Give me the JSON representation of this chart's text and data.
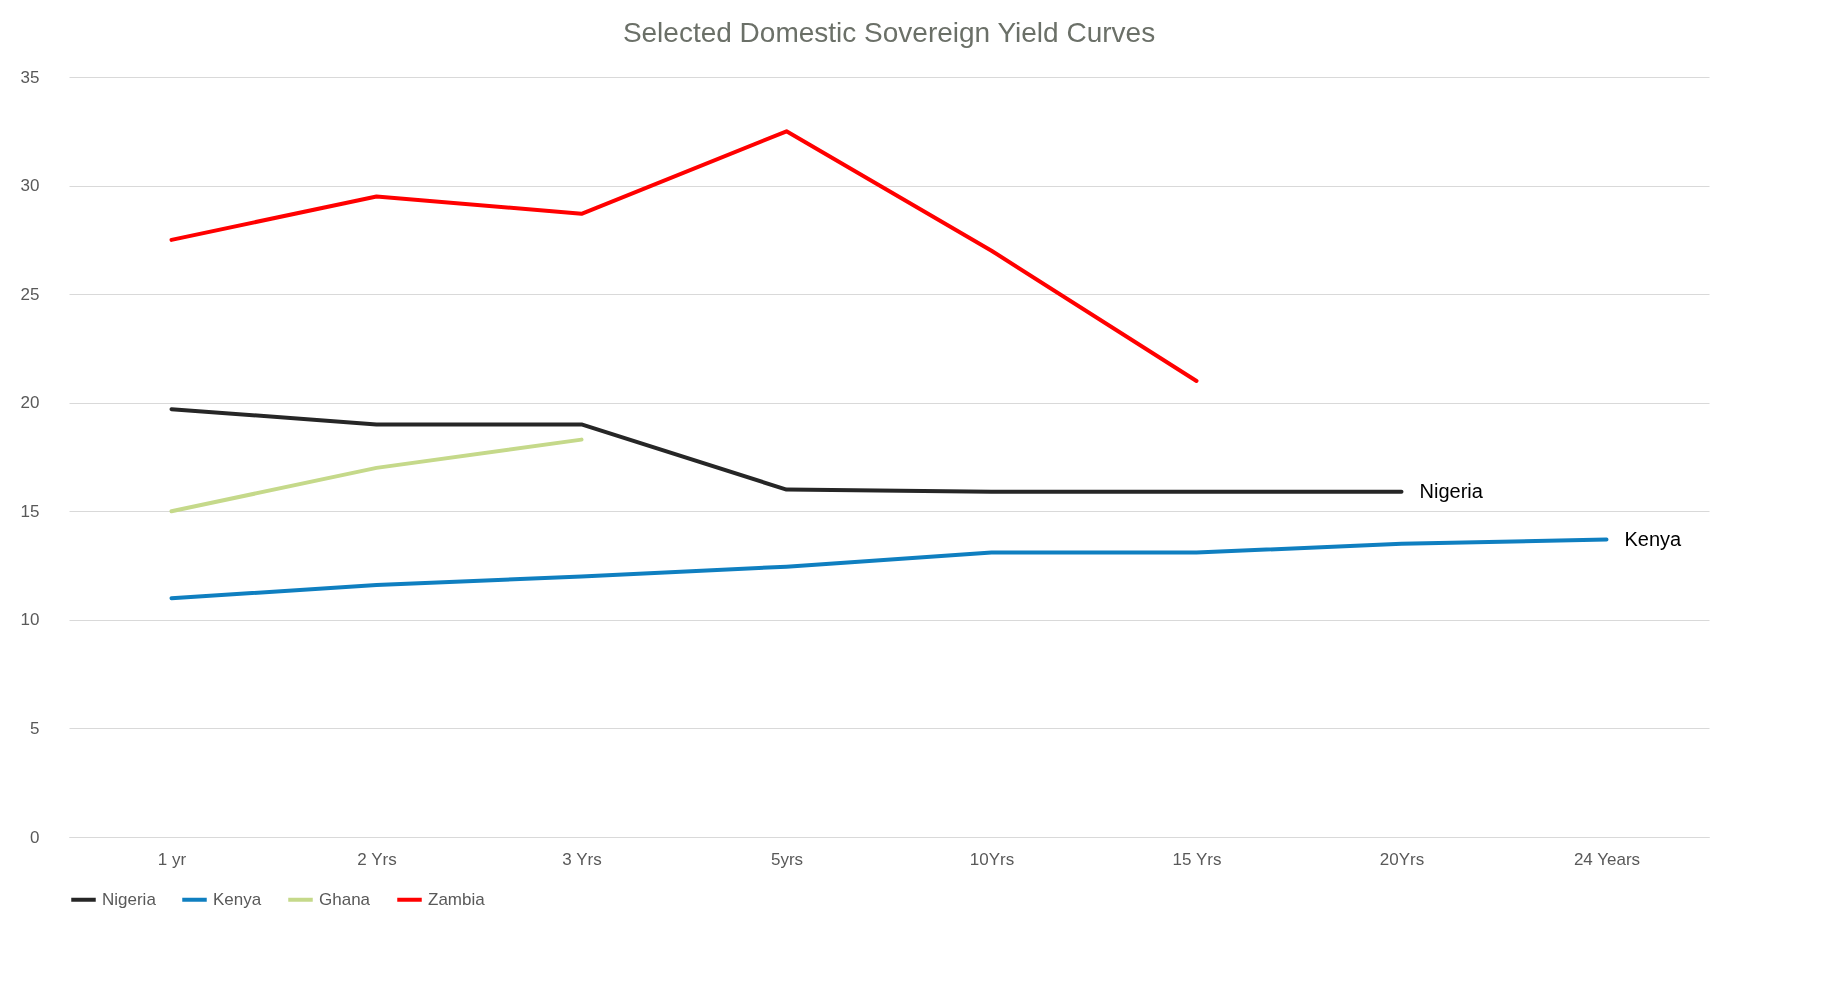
{
  "chart_data": {
    "type": "line",
    "title": "Selected Domestic Sovereign Yield Curves",
    "categories": [
      "1 yr",
      "2 Yrs",
      "3 Yrs",
      "5yrs",
      "10Yrs",
      "15 Yrs",
      "20Yrs",
      "24 Years"
    ],
    "series": [
      {
        "name": "Nigeria",
        "color": "#262626",
        "values": [
          19.7,
          19.0,
          19.0,
          16.0,
          15.9,
          15.9,
          15.9,
          null
        ]
      },
      {
        "name": "Kenya",
        "color": "#0f7fc0",
        "values": [
          11.0,
          11.6,
          12.0,
          12.45,
          13.1,
          13.1,
          13.5,
          13.7
        ]
      },
      {
        "name": "Ghana",
        "color": "#c5d98a",
        "values": [
          15.0,
          17.0,
          18.3,
          null,
          null,
          null,
          null,
          null
        ]
      },
      {
        "name": "Zambia",
        "color": "#ff0000",
        "values": [
          27.5,
          29.5,
          28.7,
          32.5,
          27.0,
          21.0,
          null,
          null
        ]
      }
    ],
    "ylim": [
      0,
      35
    ],
    "yticks": [
      0,
      5,
      10,
      15,
      20,
      25,
      30,
      35
    ],
    "grid": "y",
    "legend": "bottom",
    "marker": "none",
    "line_style": "solid",
    "annotations": [
      {
        "text": "Nigeria",
        "x": "20Yrs",
        "y": 15.9
      },
      {
        "text": "Kenya",
        "x": "24 Years",
        "y": 13.7
      }
    ]
  }
}
